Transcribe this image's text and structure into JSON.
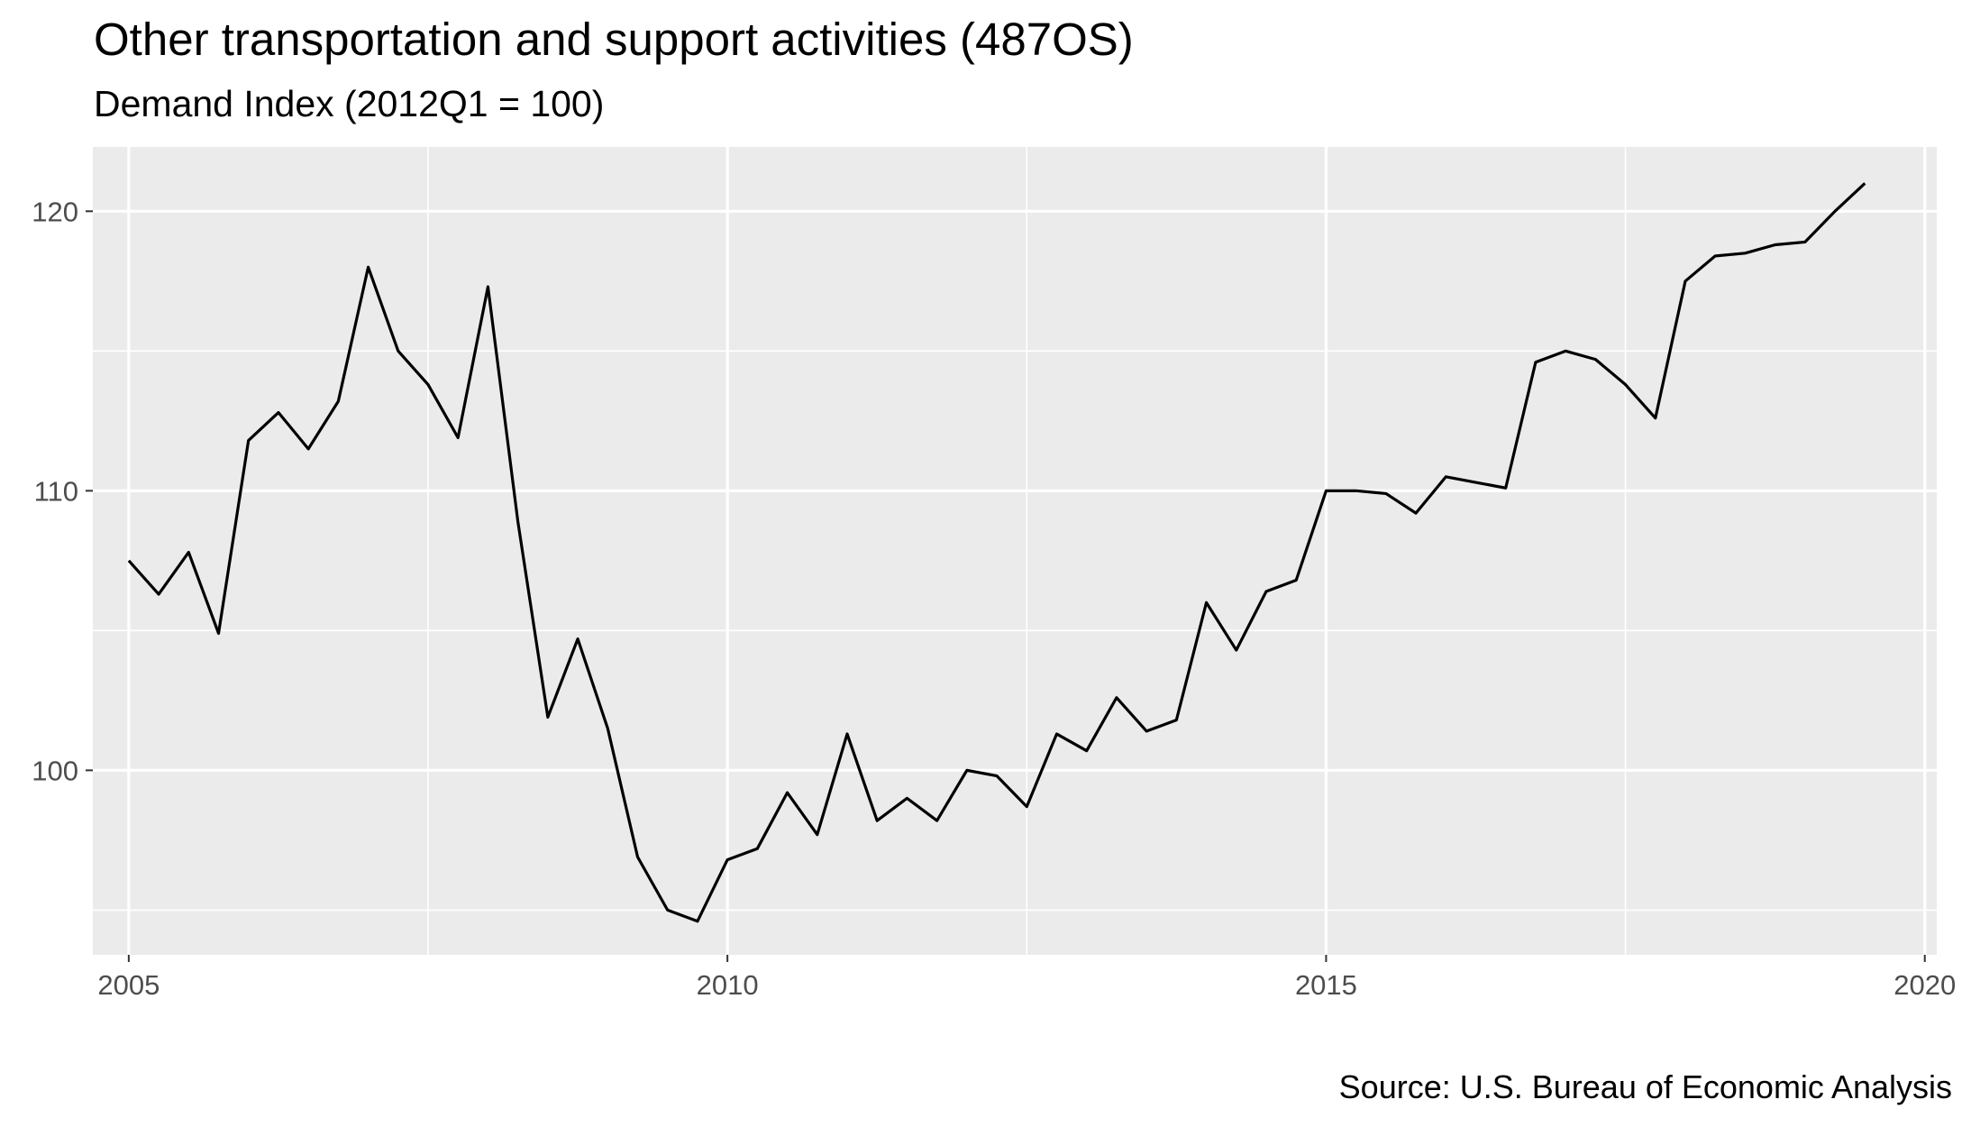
{
  "chart_data": {
    "type": "line",
    "title": "Other transportation and support activities (487OS)",
    "subtitle": "Demand Index (2012Q1 = 100)",
    "caption": "Source: U.S. Bureau of Economic Analysis",
    "xlabel": "",
    "ylabel": "",
    "xlim": [
      2004.7,
      2020.1
    ],
    "ylim": [
      93.4,
      122.3
    ],
    "x_ticks": [
      2005,
      2010,
      2015,
      2020
    ],
    "x_tick_labels": [
      "2005",
      "2010",
      "2015",
      "2020"
    ],
    "y_ticks": [
      100,
      110,
      120
    ],
    "y_tick_labels": [
      "100",
      "110",
      "120"
    ],
    "grid": true,
    "legend": "none",
    "colors": {
      "panel": "#ebebeb",
      "grid": "#ffffff",
      "line": "#000000"
    },
    "series": [
      {
        "x": [
          2005.0,
          2005.25,
          2005.5,
          2005.75,
          2006.0,
          2006.25,
          2006.5,
          2006.75,
          2007.0,
          2007.25,
          2007.5,
          2007.75,
          2008.0,
          2008.25,
          2008.5,
          2008.75,
          2009.0,
          2009.25,
          2009.5,
          2009.75,
          2010.0,
          2010.25,
          2010.5,
          2010.75,
          2011.0,
          2011.25,
          2011.5,
          2011.75,
          2012.0,
          2012.25,
          2012.5,
          2012.75,
          2013.0,
          2013.25,
          2013.5,
          2013.75,
          2014.0,
          2014.25,
          2014.5,
          2014.75,
          2015.0,
          2015.25,
          2015.5,
          2015.75,
          2016.0,
          2016.25,
          2016.5,
          2016.75,
          2017.0,
          2017.25,
          2017.5,
          2017.75,
          2018.0,
          2018.25,
          2018.5,
          2018.75,
          2019.0,
          2019.25,
          2019.5
        ],
        "values": [
          107.5,
          106.3,
          107.8,
          104.9,
          111.8,
          112.8,
          111.5,
          113.2,
          118.0,
          115.0,
          113.8,
          111.9,
          117.3,
          108.9,
          101.9,
          104.7,
          101.5,
          96.9,
          95.0,
          94.6,
          96.8,
          97.2,
          99.2,
          97.7,
          101.3,
          98.2,
          99.0,
          98.2,
          100.0,
          99.8,
          98.7,
          101.3,
          100.7,
          102.6,
          101.4,
          101.8,
          106.0,
          104.3,
          106.4,
          106.8,
          110.0,
          110.0,
          109.9,
          109.2,
          110.5,
          110.3,
          110.1,
          114.6,
          115.0,
          114.7,
          113.8,
          112.6,
          117.5,
          118.4,
          118.5,
          118.8,
          118.9,
          120.0,
          121.0
        ]
      }
    ]
  }
}
